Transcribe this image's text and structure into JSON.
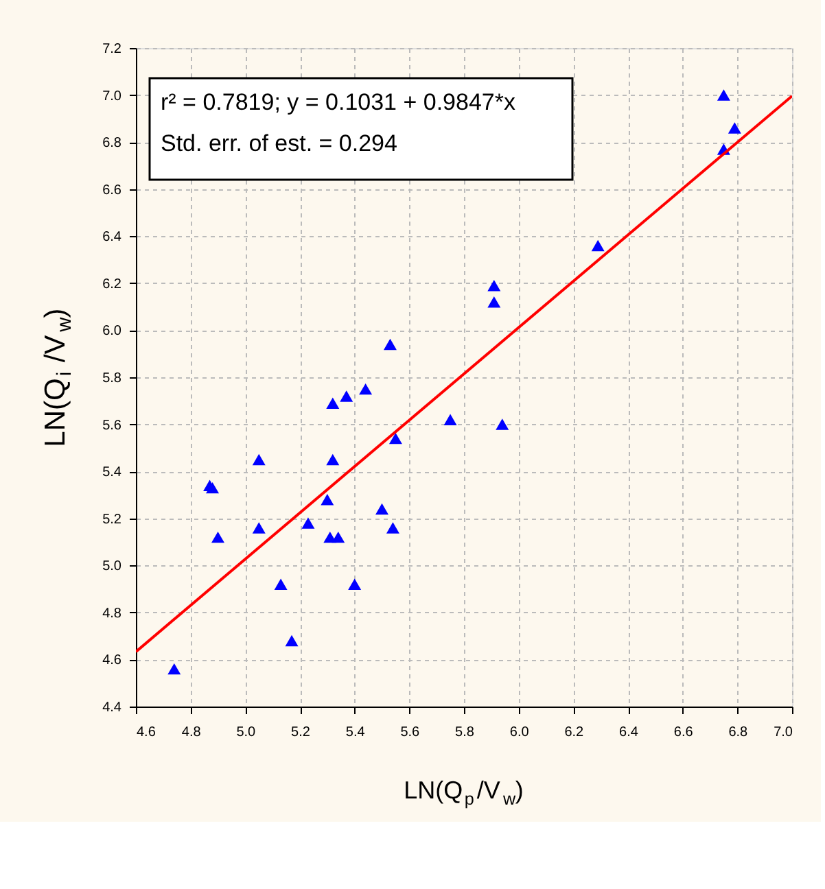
{
  "chart_data": {
    "type": "scatter",
    "xlabel": "LN(Q$_{p}$/V$_{w}$)",
    "ylabel": "LN(Q$_{i}$/V$_{w}$)",
    "annotations": [
      "r² = 0.7819;  y = 0.1031 + 0.9847*x",
      "Std. err. of est. = 0.294"
    ],
    "xlim": [
      4.6,
      7.0
    ],
    "xticks": [
      4.6,
      4.8,
      {
        "value": 5,
        "label": "5.0"
      },
      5.2,
      5.4,
      5.6,
      5.8,
      {
        "value": 6,
        "label": "6.0"
      },
      6.2,
      6.4,
      6.6,
      6.8,
      {
        "value": 7,
        "label": "7.0"
      }
    ],
    "ylim": [
      4.4,
      7.2
    ],
    "yticks": [
      4.4,
      4.6,
      4.8,
      {
        "value": 5,
        "label": "5.0"
      },
      5.2,
      5.4,
      5.6,
      5.8,
      {
        "value": 6,
        "label": "6.0"
      },
      6.2,
      6.4,
      6.6,
      6.8,
      {
        "value": 7,
        "label": "7.0"
      },
      7.2
    ],
    "grid": true,
    "series": [
      {
        "type": "scatter",
        "marker": "triangle",
        "color": "#0000ff",
        "x": [
          4.74,
          4.87,
          4.88,
          4.9,
          5.05,
          5.05,
          5.13,
          5.17,
          5.23,
          5.3,
          5.32,
          5.32,
          5.31,
          5.34,
          5.37,
          5.4,
          5.44,
          5.5,
          5.54,
          5.53,
          5.55,
          5.75,
          5.94,
          5.91,
          5.91,
          6.29,
          6.75,
          6.75,
          6.79
        ],
        "values": [
          4.56,
          5.34,
          5.33,
          5.12,
          5.45,
          5.16,
          4.92,
          4.68,
          5.18,
          5.28,
          5.45,
          5.69,
          5.12,
          5.12,
          5.72,
          4.92,
          5.75,
          5.24,
          5.16,
          5.94,
          5.54,
          5.62,
          5.6,
          6.19,
          6.12,
          6.36,
          7.0,
          6.77,
          6.86
        ]
      },
      {
        "type": "line",
        "color": "#ff0000",
        "line_style": "solid",
        "x": [
          4.6,
          7.0
        ],
        "values": [
          4.633,
          6.996
        ]
      }
    ]
  }
}
